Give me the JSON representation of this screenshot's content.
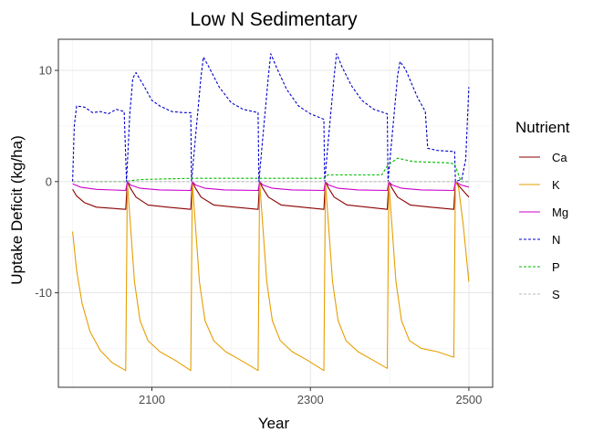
{
  "chart_data": {
    "type": "line",
    "title": "Low N Sedimentary",
    "xlabel": "Year",
    "ylabel": "Uptake Deficit (kg/ha)",
    "xlim": [
      1982,
      2530
    ],
    "ylim": [
      -18.5,
      12.8
    ],
    "x_ticks": [
      2100,
      2300,
      2500
    ],
    "y_ticks": [
      -10,
      0,
      10
    ],
    "x_minor_ticks": [
      2000,
      2200,
      2400
    ],
    "y_minor_ticks": [
      -15,
      -5,
      5
    ],
    "grid": true,
    "legend": {
      "title": "Nutrient",
      "position": "right"
    },
    "cycles": [
      {
        "start": 2000,
        "end": 2068
      },
      {
        "start": 2068,
        "end": 2150
      },
      {
        "start": 2150,
        "end": 2235
      },
      {
        "start": 2235,
        "end": 2318
      },
      {
        "start": 2318,
        "end": 2398
      },
      {
        "start": 2398,
        "end": 2482
      },
      {
        "start": 2482,
        "end": 2500
      }
    ],
    "series": [
      {
        "name": "Ca",
        "color": "#8B0000",
        "dash": "solid",
        "points": [
          [
            2000,
            -0.7
          ],
          [
            2005,
            -1.3
          ],
          [
            2015,
            -1.9
          ],
          [
            2030,
            -2.3
          ],
          [
            2067,
            -2.5
          ],
          [
            2069,
            0
          ],
          [
            2073,
            -0.6
          ],
          [
            2080,
            -1.4
          ],
          [
            2095,
            -2.1
          ],
          [
            2120,
            -2.3
          ],
          [
            2149,
            -2.5
          ],
          [
            2151,
            0
          ],
          [
            2155,
            -0.6
          ],
          [
            2162,
            -1.4
          ],
          [
            2178,
            -2.1
          ],
          [
            2205,
            -2.3
          ],
          [
            2234,
            -2.5
          ],
          [
            2236,
            0
          ],
          [
            2240,
            -0.6
          ],
          [
            2247,
            -1.4
          ],
          [
            2263,
            -2.1
          ],
          [
            2290,
            -2.3
          ],
          [
            2317,
            -2.5
          ],
          [
            2319,
            0
          ],
          [
            2323,
            -0.6
          ],
          [
            2330,
            -1.4
          ],
          [
            2346,
            -2.1
          ],
          [
            2372,
            -2.3
          ],
          [
            2397,
            -2.5
          ],
          [
            2399,
            0
          ],
          [
            2403,
            -0.6
          ],
          [
            2410,
            -1.4
          ],
          [
            2426,
            -2.1
          ],
          [
            2452,
            -2.3
          ],
          [
            2481,
            -2.5
          ],
          [
            2483,
            0
          ],
          [
            2490,
            -0.6
          ],
          [
            2500,
            -1.4
          ]
        ]
      },
      {
        "name": "K",
        "color": "#E69F00",
        "dash": "solid",
        "points": [
          [
            2000,
            -4.5
          ],
          [
            2005,
            -8
          ],
          [
            2012,
            -11
          ],
          [
            2022,
            -13.5
          ],
          [
            2035,
            -15.2
          ],
          [
            2050,
            -16.3
          ],
          [
            2067,
            -17
          ],
          [
            2069,
            0
          ],
          [
            2072,
            -3
          ],
          [
            2078,
            -9
          ],
          [
            2085,
            -12.5
          ],
          [
            2095,
            -14.3
          ],
          [
            2110,
            -15.3
          ],
          [
            2130,
            -16.1
          ],
          [
            2149,
            -17
          ],
          [
            2151,
            0
          ],
          [
            2154,
            -3
          ],
          [
            2160,
            -9
          ],
          [
            2167,
            -12.5
          ],
          [
            2178,
            -14.3
          ],
          [
            2193,
            -15.3
          ],
          [
            2213,
            -16.1
          ],
          [
            2234,
            -17
          ],
          [
            2236,
            0
          ],
          [
            2239,
            -3
          ],
          [
            2245,
            -9
          ],
          [
            2252,
            -12.5
          ],
          [
            2262,
            -14.3
          ],
          [
            2277,
            -15.3
          ],
          [
            2297,
            -16.1
          ],
          [
            2317,
            -17
          ],
          [
            2319,
            0
          ],
          [
            2322,
            -3
          ],
          [
            2328,
            -9
          ],
          [
            2335,
            -12.5
          ],
          [
            2345,
            -14.3
          ],
          [
            2360,
            -15.3
          ],
          [
            2380,
            -16.1
          ],
          [
            2397,
            -16.8
          ],
          [
            2399,
            0
          ],
          [
            2402,
            -3
          ],
          [
            2408,
            -9
          ],
          [
            2415,
            -12.5
          ],
          [
            2425,
            -14.3
          ],
          [
            2440,
            -15
          ],
          [
            2460,
            -15.3
          ],
          [
            2481,
            -15.8
          ],
          [
            2483,
            0
          ],
          [
            2487,
            -0.5
          ],
          [
            2493,
            -4
          ],
          [
            2500,
            -9
          ]
        ]
      },
      {
        "name": "Mg",
        "color": "#CC00CC",
        "dash": "solid",
        "points": [
          [
            2000,
            -0.2
          ],
          [
            2010,
            -0.5
          ],
          [
            2030,
            -0.7
          ],
          [
            2067,
            -0.8
          ],
          [
            2069,
            0
          ],
          [
            2073,
            -0.3
          ],
          [
            2085,
            -0.6
          ],
          [
            2110,
            -0.75
          ],
          [
            2149,
            -0.8
          ],
          [
            2151,
            0
          ],
          [
            2155,
            -0.3
          ],
          [
            2167,
            -0.6
          ],
          [
            2192,
            -0.75
          ],
          [
            2234,
            -0.8
          ],
          [
            2236,
            0
          ],
          [
            2240,
            -0.3
          ],
          [
            2252,
            -0.6
          ],
          [
            2277,
            -0.75
          ],
          [
            2317,
            -0.8
          ],
          [
            2319,
            0
          ],
          [
            2323,
            -0.3
          ],
          [
            2335,
            -0.6
          ],
          [
            2360,
            -0.75
          ],
          [
            2397,
            -0.8
          ],
          [
            2399,
            0
          ],
          [
            2403,
            -0.3
          ],
          [
            2415,
            -0.6
          ],
          [
            2440,
            -0.75
          ],
          [
            2481,
            -0.8
          ],
          [
            2483,
            0
          ],
          [
            2490,
            -0.3
          ],
          [
            2500,
            -0.5
          ]
        ]
      },
      {
        "name": "N",
        "color": "#0000CC",
        "dash": "dashed",
        "points": [
          [
            2000,
            0
          ],
          [
            2002,
            5
          ],
          [
            2005,
            6.8
          ],
          [
            2015,
            6.7
          ],
          [
            2025,
            6.2
          ],
          [
            2035,
            6.3
          ],
          [
            2045,
            6.1
          ],
          [
            2055,
            6.5
          ],
          [
            2065,
            6.3
          ],
          [
            2068,
            0
          ],
          [
            2072,
            6
          ],
          [
            2076,
            9.3
          ],
          [
            2080,
            9.8
          ],
          [
            2090,
            8.6
          ],
          [
            2100,
            7.3
          ],
          [
            2110,
            6.8
          ],
          [
            2125,
            6.3
          ],
          [
            2140,
            6.2
          ],
          [
            2149,
            6.2
          ],
          [
            2150,
            0
          ],
          [
            2155,
            4
          ],
          [
            2162,
            9.5
          ],
          [
            2165,
            11.2
          ],
          [
            2172,
            10.3
          ],
          [
            2185,
            8.5
          ],
          [
            2200,
            7.1
          ],
          [
            2215,
            6.5
          ],
          [
            2234,
            6.2
          ],
          [
            2235,
            0
          ],
          [
            2240,
            4
          ],
          [
            2247,
            9.5
          ],
          [
            2250,
            11.5
          ],
          [
            2257,
            10.3
          ],
          [
            2270,
            8.3
          ],
          [
            2285,
            6.8
          ],
          [
            2300,
            6.1
          ],
          [
            2317,
            5.6
          ],
          [
            2318,
            0
          ],
          [
            2323,
            4
          ],
          [
            2330,
            9.5
          ],
          [
            2333,
            11.5
          ],
          [
            2340,
            10.3
          ],
          [
            2352,
            8.6
          ],
          [
            2365,
            7.3
          ],
          [
            2380,
            6.5
          ],
          [
            2397,
            6.1
          ],
          [
            2398,
            0
          ],
          [
            2403,
            4
          ],
          [
            2410,
            9.5
          ],
          [
            2413,
            10.8
          ],
          [
            2420,
            10.1
          ],
          [
            2435,
            7.6
          ],
          [
            2445,
            6.3
          ],
          [
            2448,
            3
          ],
          [
            2460,
            2.8
          ],
          [
            2482,
            2.7
          ],
          [
            2483,
            0
          ],
          [
            2491,
            0.2
          ],
          [
            2496,
            2
          ],
          [
            2500,
            8.5
          ]
        ]
      },
      {
        "name": "P",
        "color": "#00BB00",
        "dash": "dashed",
        "points": [
          [
            2000,
            0
          ],
          [
            2068,
            0
          ],
          [
            2074,
            0.1
          ],
          [
            2090,
            0.2
          ],
          [
            2150,
            0.3
          ],
          [
            2235,
            0.3
          ],
          [
            2318,
            0.3
          ],
          [
            2322,
            0.6
          ],
          [
            2390,
            0.6
          ],
          [
            2398,
            1.5
          ],
          [
            2404,
            1.8
          ],
          [
            2410,
            2.1
          ],
          [
            2430,
            1.8
          ],
          [
            2470,
            1.7
          ],
          [
            2482,
            1.6
          ],
          [
            2490,
            0
          ],
          [
            2500,
            0
          ]
        ]
      },
      {
        "name": "S",
        "color": "#BBBBBB",
        "dash": "dashed",
        "points": [
          [
            2000,
            0
          ],
          [
            2500,
            0
          ]
        ]
      }
    ]
  }
}
